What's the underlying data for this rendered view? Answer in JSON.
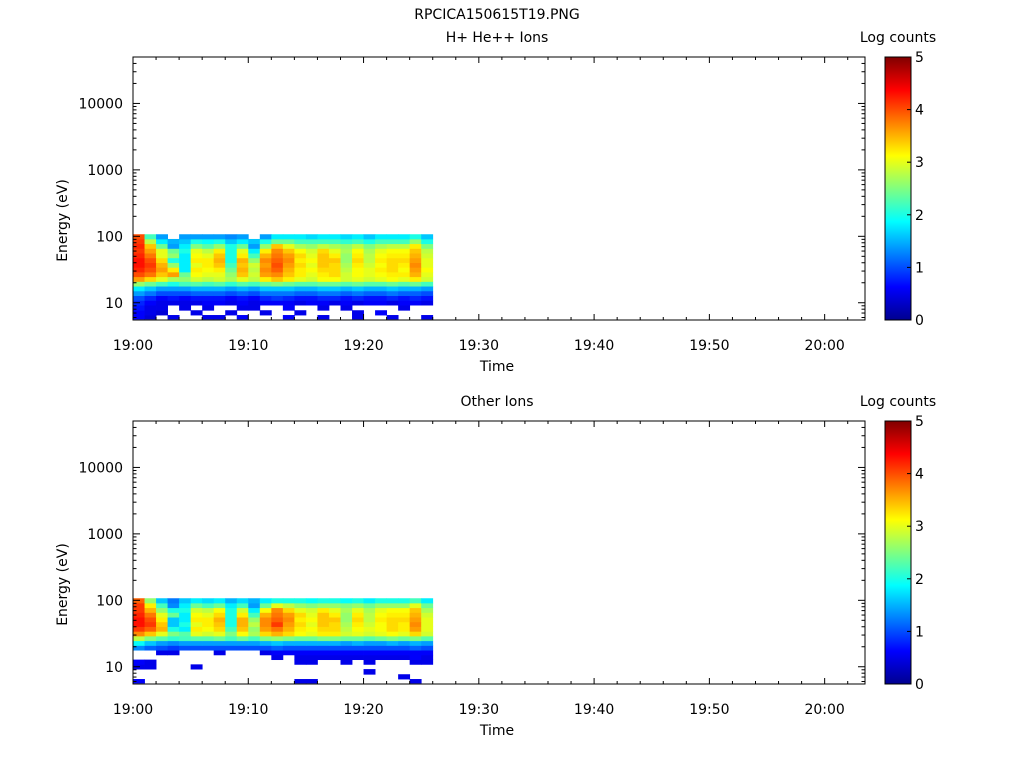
{
  "figure_title": "RPCICA150615T19.PNG",
  "colors": {
    "colormap": [
      "#00008f",
      "#0000ff",
      "#0080ff",
      "#00ffff",
      "#80ff80",
      "#ffff00",
      "#ff8000",
      "#ff0000",
      "#800000"
    ],
    "axis": "#000000",
    "background": "#ffffff"
  },
  "chart_data": [
    {
      "type": "heatmap",
      "title": "H+ He++ Ions",
      "xlabel": "Time",
      "ylabel": "Energy (eV)",
      "x_unit": "minutes after 19:00",
      "xlim": [
        0,
        63.5
      ],
      "x_ticks": [
        0,
        10,
        20,
        30,
        40,
        50,
        60
      ],
      "x_tick_labels": [
        "19:00",
        "19:10",
        "19:20",
        "19:30",
        "19:40",
        "19:50",
        "20:00"
      ],
      "y_scale": "log",
      "ylim": [
        5.5,
        50000
      ],
      "y_ticks": [
        10,
        100,
        1000,
        10000
      ],
      "y_tick_labels": [
        "10",
        "100",
        "1000",
        "10000"
      ],
      "colorbar": {
        "label": "Log counts",
        "range": [
          0,
          5
        ],
        "ticks": [
          0,
          1,
          2,
          3,
          4,
          5
        ],
        "tick_labels": [
          "0",
          "1",
          "2",
          "3",
          "4",
          "5"
        ]
      },
      "time_bins_min": [
        0,
        1,
        2,
        3,
        4,
        5,
        6,
        7,
        8,
        9,
        10,
        11,
        12,
        13,
        14,
        15,
        16,
        17,
        18,
        19,
        20,
        21,
        22,
        23,
        24,
        25
      ],
      "energy_bins_eV": [
        6.1,
        7.0,
        8.5,
        10.0,
        11.8,
        13.9,
        16.4,
        19.3,
        22.7,
        26.8,
        31.5,
        37.1,
        43.7,
        51.5,
        60.6,
        71.4,
        84.1,
        99.0
      ],
      "log_counts": [
        [
          0.6,
          0.4,
          null,
          0.5,
          null,
          null,
          0.5,
          0.5,
          null,
          0.6,
          null,
          null,
          null,
          0.6,
          null,
          null,
          0.5,
          null,
          null,
          0.5,
          null,
          null,
          0.5,
          null,
          null,
          0.5
        ],
        [
          0.6,
          0.5,
          0.4,
          null,
          null,
          0.5,
          null,
          null,
          0.5,
          null,
          null,
          0.5,
          null,
          null,
          0.5,
          null,
          null,
          null,
          null,
          0.5,
          null,
          0.6,
          null,
          null,
          null,
          null
        ],
        [
          0.7,
          0.5,
          0.5,
          null,
          0.5,
          null,
          0.5,
          null,
          null,
          0.5,
          0.5,
          null,
          null,
          0.6,
          null,
          null,
          0.5,
          null,
          0.5,
          null,
          null,
          null,
          null,
          0.5,
          null,
          null
        ],
        [
          0.8,
          0.6,
          0.5,
          0.5,
          0.5,
          0.5,
          0.6,
          0.6,
          0.5,
          0.6,
          0.5,
          0.6,
          0.6,
          0.6,
          0.5,
          0.6,
          0.6,
          0.5,
          0.6,
          0.5,
          0.6,
          0.6,
          0.5,
          0.6,
          0.6,
          0.5
        ],
        [
          1.0,
          0.8,
          0.6,
          0.7,
          0.6,
          0.7,
          0.7,
          0.7,
          0.6,
          0.7,
          0.6,
          0.8,
          0.9,
          0.8,
          0.7,
          0.7,
          0.8,
          0.8,
          0.7,
          0.8,
          0.7,
          0.7,
          0.8,
          0.7,
          0.8,
          0.7
        ],
        [
          1.4,
          1.2,
          1.0,
          1.0,
          1.0,
          1.1,
          1.1,
          1.1,
          1.0,
          1.1,
          1.0,
          1.2,
          1.2,
          1.2,
          1.1,
          1.1,
          1.2,
          1.2,
          1.1,
          1.2,
          1.1,
          1.1,
          1.2,
          1.1,
          1.1,
          1.0
        ],
        [
          1.8,
          1.6,
          1.4,
          1.4,
          1.4,
          1.5,
          1.5,
          1.5,
          1.4,
          1.5,
          1.4,
          1.6,
          1.6,
          1.6,
          1.5,
          1.5,
          1.6,
          1.6,
          1.5,
          1.6,
          1.5,
          1.5,
          1.6,
          1.5,
          1.5,
          1.4
        ],
        [
          2.6,
          2.4,
          2.2,
          2.0,
          2.2,
          2.3,
          2.2,
          2.3,
          2.1,
          2.3,
          2.2,
          2.4,
          2.5,
          2.4,
          2.3,
          2.3,
          2.4,
          2.4,
          2.3,
          2.4,
          2.3,
          2.3,
          2.4,
          2.3,
          2.4,
          2.2
        ],
        [
          3.6,
          3.3,
          3.0,
          2.7,
          2.6,
          2.9,
          2.8,
          2.9,
          2.7,
          3.0,
          2.8,
          3.2,
          3.4,
          3.2,
          3.0,
          2.9,
          3.1,
          3.1,
          2.9,
          3.0,
          2.9,
          3.0,
          3.1,
          3.0,
          3.2,
          2.9
        ],
        [
          4.0,
          3.8,
          3.4,
          3.6,
          2.4,
          3.1,
          3.0,
          3.0,
          2.6,
          3.4,
          2.9,
          3.6,
          3.7,
          3.4,
          3.2,
          3.0,
          3.2,
          3.3,
          2.9,
          3.1,
          3.0,
          3.1,
          3.2,
          3.2,
          3.5,
          3.0
        ],
        [
          4.2,
          4.0,
          3.6,
          3.2,
          1.8,
          3.2,
          3.1,
          3.2,
          2.4,
          3.5,
          2.8,
          3.7,
          3.9,
          3.5,
          3.2,
          3.1,
          3.3,
          3.3,
          2.8,
          3.1,
          3.0,
          3.2,
          3.3,
          3.1,
          3.6,
          3.1
        ],
        [
          4.3,
          4.1,
          3.5,
          2.6,
          1.8,
          3.0,
          3.2,
          3.4,
          2.2,
          3.4,
          2.9,
          3.6,
          4.0,
          3.6,
          3.3,
          3.0,
          3.4,
          3.3,
          2.7,
          3.2,
          2.9,
          3.1,
          3.3,
          3.2,
          3.7,
          3.0
        ],
        [
          4.3,
          4.0,
          3.3,
          2.0,
          1.8,
          3.2,
          3.2,
          3.5,
          2.0,
          3.5,
          2.6,
          3.7,
          3.9,
          3.7,
          3.2,
          3.1,
          3.4,
          3.4,
          2.6,
          3.3,
          2.8,
          3.2,
          3.3,
          3.3,
          3.6,
          3.0
        ],
        [
          4.2,
          3.8,
          3.0,
          2.6,
          1.8,
          3.1,
          3.0,
          3.4,
          2.0,
          3.2,
          2.2,
          3.5,
          3.8,
          3.6,
          3.3,
          3.0,
          3.4,
          3.2,
          2.6,
          3.2,
          2.8,
          3.1,
          3.2,
          3.2,
          3.5,
          2.9
        ],
        [
          4.1,
          3.6,
          3.0,
          2.4,
          2.0,
          3.0,
          2.8,
          3.2,
          2.0,
          3.0,
          1.8,
          3.2,
          3.7,
          3.4,
          3.1,
          2.9,
          3.3,
          3.0,
          2.7,
          3.1,
          2.7,
          3.0,
          3.1,
          3.1,
          3.4,
          2.8
        ],
        [
          4.2,
          3.4,
          2.4,
          1.4,
          1.8,
          2.5,
          2.3,
          2.6,
          2.0,
          2.4,
          1.4,
          2.6,
          3.4,
          3.0,
          2.7,
          2.6,
          2.8,
          2.7,
          2.6,
          2.8,
          2.5,
          2.7,
          2.8,
          2.8,
          3.2,
          2.5
        ],
        [
          4.1,
          2.8,
          1.8,
          1.5,
          1.6,
          2.0,
          1.9,
          2.0,
          1.6,
          1.8,
          1.6,
          2.0,
          2.4,
          2.4,
          2.2,
          2.2,
          2.2,
          2.2,
          2.1,
          2.2,
          2.0,
          2.2,
          2.2,
          2.2,
          2.6,
          2.0
        ],
        [
          4.0,
          2.2,
          1.4,
          null,
          1.4,
          1.4,
          1.4,
          1.4,
          1.3,
          1.4,
          null,
          1.4,
          1.8,
          1.8,
          1.8,
          1.7,
          1.8,
          1.8,
          1.7,
          1.8,
          1.6,
          1.8,
          1.8,
          1.8,
          2.0,
          1.6
        ]
      ]
    },
    {
      "type": "heatmap",
      "title": "Other Ions",
      "xlabel": "Time",
      "ylabel": "Energy (eV)",
      "x_unit": "minutes after 19:00",
      "xlim": [
        0,
        63.5
      ],
      "x_ticks": [
        0,
        10,
        20,
        30,
        40,
        50,
        60
      ],
      "x_tick_labels": [
        "19:00",
        "19:10",
        "19:20",
        "19:30",
        "19:40",
        "19:50",
        "20:00"
      ],
      "y_scale": "log",
      "ylim": [
        5.5,
        50000
      ],
      "y_ticks": [
        10,
        100,
        1000,
        10000
      ],
      "y_tick_labels": [
        "10",
        "100",
        "1000",
        "10000"
      ],
      "colorbar": {
        "label": "Log counts",
        "range": [
          0,
          5
        ],
        "ticks": [
          0,
          1,
          2,
          3,
          4,
          5
        ],
        "tick_labels": [
          "0",
          "1",
          "2",
          "3",
          "4",
          "5"
        ]
      },
      "time_bins_min": [
        0,
        1,
        2,
        3,
        4,
        5,
        6,
        7,
        8,
        9,
        10,
        11,
        12,
        13,
        14,
        15,
        16,
        17,
        18,
        19,
        20,
        21,
        22,
        23,
        24,
        25
      ],
      "energy_bins_eV": [
        6.1,
        7.0,
        8.5,
        10.0,
        11.8,
        13.9,
        16.4,
        19.3,
        22.7,
        26.8,
        31.5,
        37.1,
        43.7,
        51.5,
        60.6,
        71.4,
        84.1,
        99.0
      ],
      "log_counts": [
        [
          0.6,
          null,
          null,
          null,
          null,
          null,
          null,
          null,
          null,
          null,
          null,
          null,
          null,
          null,
          0.5,
          0.5,
          null,
          null,
          null,
          null,
          null,
          null,
          null,
          null,
          0.5,
          null
        ],
        [
          null,
          null,
          null,
          null,
          null,
          null,
          null,
          null,
          null,
          null,
          null,
          null,
          null,
          null,
          null,
          null,
          null,
          null,
          null,
          null,
          null,
          null,
          null,
          0.5,
          null,
          null
        ],
        [
          null,
          null,
          null,
          null,
          null,
          null,
          null,
          null,
          null,
          null,
          null,
          null,
          null,
          null,
          null,
          null,
          null,
          null,
          null,
          null,
          0.5,
          null,
          null,
          null,
          null,
          null
        ],
        [
          0.5,
          0.5,
          null,
          null,
          null,
          0.5,
          null,
          null,
          null,
          null,
          null,
          null,
          null,
          null,
          null,
          null,
          null,
          null,
          null,
          null,
          null,
          null,
          null,
          null,
          null,
          null
        ],
        [
          0.6,
          0.5,
          null,
          null,
          null,
          null,
          null,
          null,
          null,
          null,
          null,
          null,
          null,
          null,
          0.5,
          0.5,
          null,
          null,
          0.5,
          null,
          0.5,
          null,
          null,
          null,
          0.5,
          0.5
        ],
        [
          null,
          null,
          null,
          null,
          null,
          null,
          null,
          null,
          null,
          null,
          null,
          null,
          0.5,
          null,
          0.5,
          0.5,
          0.5,
          0.5,
          0.5,
          0.5,
          0.5,
          0.5,
          0.5,
          0.5,
          0.6,
          0.5
        ],
        [
          null,
          null,
          0.5,
          0.5,
          null,
          null,
          null,
          0.5,
          null,
          null,
          null,
          0.5,
          0.6,
          0.6,
          0.6,
          0.6,
          0.6,
          0.6,
          0.6,
          0.6,
          0.6,
          0.6,
          0.6,
          0.6,
          0.6,
          0.6
        ],
        [
          1.3,
          1.1,
          1.0,
          0.9,
          1.0,
          1.0,
          1.0,
          1.0,
          1.0,
          1.0,
          1.0,
          1.0,
          1.1,
          1.0,
          1.0,
          1.0,
          1.0,
          1.0,
          1.0,
          1.0,
          1.0,
          1.0,
          1.0,
          1.0,
          1.1,
          1.0
        ],
        [
          1.9,
          1.6,
          1.4,
          1.3,
          1.4,
          1.4,
          1.4,
          1.4,
          1.4,
          1.4,
          1.4,
          1.5,
          1.6,
          1.5,
          1.5,
          1.5,
          1.5,
          1.5,
          1.4,
          1.5,
          1.4,
          1.4,
          1.5,
          1.4,
          1.5,
          1.4
        ],
        [
          2.8,
          2.5,
          2.3,
          2.1,
          2.2,
          2.3,
          2.3,
          2.4,
          2.2,
          2.4,
          2.2,
          2.5,
          2.6,
          2.5,
          2.4,
          2.4,
          2.5,
          2.5,
          2.4,
          2.4,
          2.3,
          2.4,
          2.5,
          2.4,
          2.5,
          2.3
        ],
        [
          3.7,
          3.4,
          3.0,
          2.5,
          2.3,
          3.0,
          2.9,
          3.0,
          2.5,
          3.1,
          2.7,
          3.3,
          3.5,
          3.3,
          3.1,
          3.0,
          3.2,
          3.2,
          2.9,
          3.0,
          2.9,
          3.0,
          3.1,
          3.0,
          3.3,
          2.9
        ],
        [
          4.1,
          3.9,
          3.5,
          2.0,
          1.8,
          3.2,
          3.1,
          3.3,
          2.2,
          3.4,
          2.6,
          3.6,
          3.8,
          3.5,
          3.2,
          3.1,
          3.3,
          3.3,
          2.8,
          3.1,
          3.0,
          3.1,
          3.3,
          3.2,
          3.6,
          3.0
        ],
        [
          4.3,
          4.1,
          3.4,
          1.6,
          2.0,
          3.0,
          3.2,
          3.4,
          2.0,
          3.5,
          2.8,
          3.7,
          4.1,
          3.6,
          3.3,
          3.0,
          3.4,
          3.3,
          2.7,
          3.2,
          2.9,
          3.1,
          3.3,
          3.2,
          3.7,
          3.0
        ],
        [
          4.3,
          4.0,
          3.2,
          1.6,
          1.8,
          3.2,
          3.2,
          3.5,
          2.0,
          3.5,
          2.6,
          3.7,
          3.9,
          3.7,
          3.2,
          3.1,
          3.4,
          3.4,
          2.6,
          3.3,
          2.8,
          3.2,
          3.3,
          3.3,
          3.6,
          3.0
        ],
        [
          4.2,
          3.8,
          3.0,
          2.4,
          1.8,
          3.1,
          3.0,
          3.3,
          2.0,
          3.2,
          2.2,
          3.5,
          3.8,
          3.6,
          3.3,
          3.0,
          3.4,
          3.2,
          2.6,
          3.2,
          2.8,
          3.1,
          3.2,
          3.2,
          3.5,
          2.9
        ],
        [
          4.1,
          3.5,
          2.6,
          2.0,
          2.0,
          2.9,
          2.8,
          3.1,
          2.0,
          2.9,
          1.8,
          3.1,
          3.7,
          3.3,
          3.0,
          2.9,
          3.2,
          3.0,
          2.7,
          3.0,
          2.7,
          3.0,
          3.1,
          3.1,
          3.4,
          2.7
        ],
        [
          4.1,
          3.2,
          2.2,
          1.3,
          1.8,
          2.4,
          2.2,
          2.4,
          1.8,
          2.2,
          1.4,
          2.4,
          3.0,
          2.8,
          2.6,
          2.5,
          2.6,
          2.6,
          2.5,
          2.6,
          2.4,
          2.6,
          2.6,
          2.6,
          3.0,
          2.4
        ],
        [
          3.9,
          2.6,
          1.6,
          1.2,
          1.6,
          1.8,
          1.7,
          1.8,
          1.5,
          1.7,
          1.5,
          1.8,
          2.0,
          2.0,
          2.0,
          1.9,
          2.0,
          2.0,
          1.9,
          2.0,
          1.8,
          2.0,
          2.0,
          2.0,
          2.2,
          1.8
        ]
      ]
    }
  ]
}
